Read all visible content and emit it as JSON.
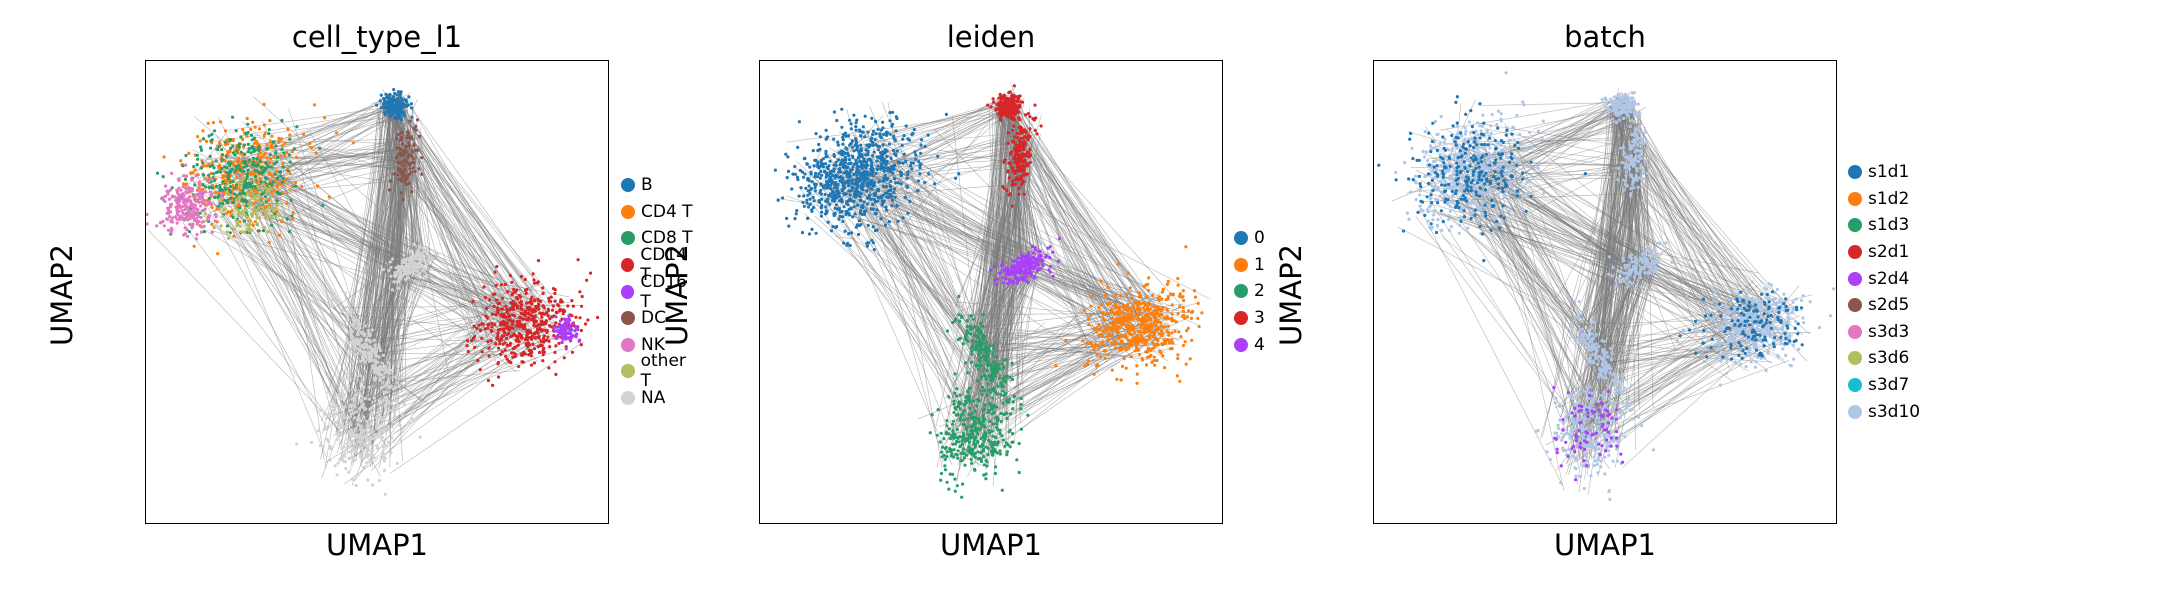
{
  "figure": {
    "panels": [
      {
        "title": "cell_type_l1",
        "xlabel": "UMAP1",
        "ylabel": "UMAP2",
        "legend": [
          {
            "label": "B",
            "color": "#1f77b4"
          },
          {
            "label": "CD4 T",
            "color": "#ff7f0e"
          },
          {
            "label": "CD8 T",
            "color": "#279e68"
          },
          {
            "label": "CD14 T",
            "color": "#d62728"
          },
          {
            "label": "CD16 T",
            "color": "#aa40fc"
          },
          {
            "label": "DC",
            "color": "#8c564b"
          },
          {
            "label": "NK",
            "color": "#e377c2"
          },
          {
            "label": "other T",
            "color": "#b5bd61"
          },
          {
            "label": "NA",
            "color": "#d3d3d3"
          }
        ]
      },
      {
        "title": "leiden",
        "xlabel": "UMAP1",
        "ylabel": "UMAP2",
        "legend": [
          {
            "label": "0",
            "color": "#1f77b4"
          },
          {
            "label": "1",
            "color": "#ff7f0e"
          },
          {
            "label": "2",
            "color": "#279e68"
          },
          {
            "label": "3",
            "color": "#d62728"
          },
          {
            "label": "4",
            "color": "#aa40fc"
          }
        ]
      },
      {
        "title": "batch",
        "xlabel": "UMAP1",
        "ylabel": "UMAP2",
        "legend": [
          {
            "label": "s1d1",
            "color": "#1f77b4"
          },
          {
            "label": "s1d2",
            "color": "#ff7f0e"
          },
          {
            "label": "s1d3",
            "color": "#279e68"
          },
          {
            "label": "s2d1",
            "color": "#d62728"
          },
          {
            "label": "s2d4",
            "color": "#aa40fc"
          },
          {
            "label": "s2d5",
            "color": "#8c564b"
          },
          {
            "label": "s3d3",
            "color": "#e377c2"
          },
          {
            "label": "s3d6",
            "color": "#b5bd61"
          },
          {
            "label": "s3d7",
            "color": "#17becf"
          },
          {
            "label": "s3d10",
            "color": "#aec7e8"
          }
        ]
      }
    ]
  },
  "chart_data": [
    {
      "type": "scatter",
      "title": "cell_type_l1",
      "xlabel": "UMAP1",
      "ylabel": "UMAP2",
      "grid": false,
      "axis_ticks": false,
      "legend_position": "right",
      "edges": "gray connectivity lines between clusters",
      "series": [
        {
          "name": "B",
          "color": "#1f77b4",
          "center": [
            0.53,
            0.93
          ]
        },
        {
          "name": "CD4 T",
          "color": "#ff7f0e",
          "center": [
            0.25,
            0.72
          ]
        },
        {
          "name": "CD8 T",
          "color": "#279e68",
          "center": [
            0.21,
            0.64
          ]
        },
        {
          "name": "CD14 T",
          "color": "#d62728",
          "center": [
            0.83,
            0.45
          ]
        },
        {
          "name": "CD16 T",
          "color": "#aa40fc",
          "center": [
            0.9,
            0.43
          ]
        },
        {
          "name": "DC",
          "color": "#8c564b",
          "center": [
            0.55,
            0.72
          ]
        },
        {
          "name": "NK",
          "color": "#e377c2",
          "center": [
            0.12,
            0.57
          ]
        },
        {
          "name": "other T",
          "color": "#b5bd61",
          "center": [
            0.2,
            0.61
          ]
        },
        {
          "name": "NA",
          "color": "#d3d3d3",
          "center": [
            0.42,
            0.2
          ]
        }
      ]
    },
    {
      "type": "scatter",
      "title": "leiden",
      "xlabel": "UMAP1",
      "ylabel": "UMAP2",
      "grid": false,
      "axis_ticks": false,
      "legend_position": "right",
      "edges": "gray connectivity lines between clusters",
      "series": [
        {
          "name": "0",
          "color": "#1f77b4",
          "center": [
            0.21,
            0.67
          ]
        },
        {
          "name": "1",
          "color": "#ff7f0e",
          "center": [
            0.82,
            0.43
          ]
        },
        {
          "name": "2",
          "color": "#279e68",
          "center": [
            0.4,
            0.2
          ]
        },
        {
          "name": "3",
          "color": "#d62728",
          "center": [
            0.56,
            0.84
          ]
        },
        {
          "name": "4",
          "color": "#aa40fc",
          "center": [
            0.55,
            0.53
          ]
        }
      ]
    },
    {
      "type": "scatter",
      "title": "batch",
      "xlabel": "UMAP1",
      "ylabel": "UMAP2",
      "grid": false,
      "axis_ticks": false,
      "legend_position": "right",
      "edges": "gray connectivity lines between clusters",
      "series": [
        {
          "name": "s1d1",
          "color": "#1f77b4"
        },
        {
          "name": "s1d2",
          "color": "#ff7f0e"
        },
        {
          "name": "s1d3",
          "color": "#279e68"
        },
        {
          "name": "s2d1",
          "color": "#d62728"
        },
        {
          "name": "s2d4",
          "color": "#aa40fc"
        },
        {
          "name": "s2d5",
          "color": "#8c564b"
        },
        {
          "name": "s3d3",
          "color": "#e377c2"
        },
        {
          "name": "s3d6",
          "color": "#b5bd61"
        },
        {
          "name": "s3d7",
          "color": "#17becf"
        },
        {
          "name": "s3d10",
          "color": "#aec7e8"
        }
      ]
    }
  ]
}
